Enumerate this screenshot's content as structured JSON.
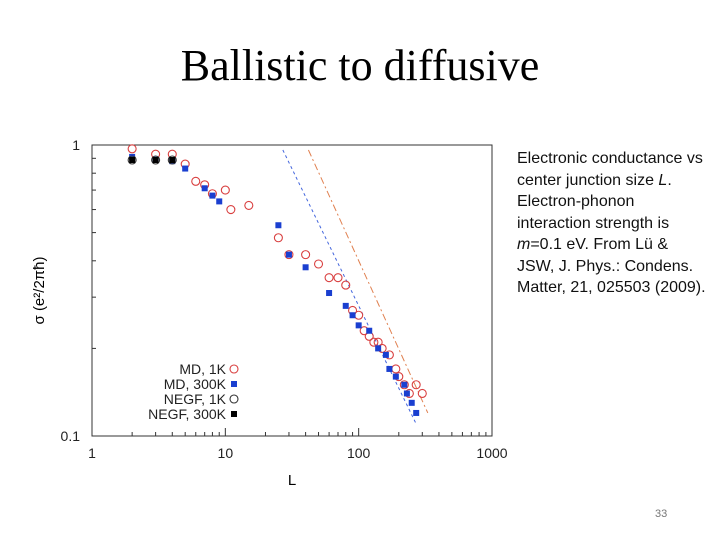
{
  "slide": {
    "title": "Ballistic to diffusive",
    "caption": {
      "part1": "Electronic conductance vs center junction size ",
      "var_L": "L",
      "part2": ". Electron-phonon interaction strength is ",
      "var_m": "m",
      "part3": "=0.1 eV. From Lü & JSW, J. Phys.: Condens. Matter, 21, 025503 (2009)."
    },
    "page_number": "33"
  },
  "chart_data": {
    "type": "scatter",
    "x_scale": "log",
    "y_scale": "log",
    "xlim": [
      1,
      1000
    ],
    "ylim": [
      0.1,
      1
    ],
    "xlabel": "L",
    "ylabel": "σ (e²/2πħ)",
    "x_ticks": [
      "1",
      "10",
      "100",
      "1000"
    ],
    "y_ticks": [
      "1",
      "0.1"
    ],
    "series": [
      {
        "name": "MD, 1K",
        "marker": "open-circle",
        "color": "#d94040",
        "points": [
          [
            2,
            0.97
          ],
          [
            3,
            0.93
          ],
          [
            4,
            0.93
          ],
          [
            5,
            0.86
          ],
          [
            6,
            0.75
          ],
          [
            7,
            0.73
          ],
          [
            8,
            0.68
          ],
          [
            10,
            0.7
          ],
          [
            11,
            0.6
          ],
          [
            15,
            0.62
          ],
          [
            25,
            0.48
          ],
          [
            30,
            0.42
          ],
          [
            40,
            0.42
          ],
          [
            50,
            0.39
          ],
          [
            60,
            0.35
          ],
          [
            70,
            0.35
          ],
          [
            80,
            0.33
          ],
          [
            90,
            0.27
          ],
          [
            100,
            0.26
          ],
          [
            110,
            0.23
          ],
          [
            120,
            0.22
          ],
          [
            130,
            0.21
          ],
          [
            140,
            0.21
          ],
          [
            150,
            0.2
          ],
          [
            170,
            0.19
          ],
          [
            190,
            0.17
          ],
          [
            200,
            0.16
          ],
          [
            220,
            0.15
          ],
          [
            240,
            0.14
          ],
          [
            270,
            0.15
          ],
          [
            300,
            0.14
          ]
        ]
      },
      {
        "name": "MD, 300K",
        "marker": "filled-square",
        "color": "#1a3fd0",
        "points": [
          [
            2,
            0.91
          ],
          [
            3,
            0.89
          ],
          [
            4,
            0.88
          ],
          [
            5,
            0.83
          ],
          [
            7,
            0.71
          ],
          [
            8,
            0.67
          ],
          [
            9,
            0.64
          ],
          [
            25,
            0.53
          ],
          [
            30,
            0.42
          ],
          [
            40,
            0.38
          ],
          [
            60,
            0.31
          ],
          [
            80,
            0.28
          ],
          [
            90,
            0.26
          ],
          [
            100,
            0.24
          ],
          [
            120,
            0.23
          ],
          [
            140,
            0.2
          ],
          [
            160,
            0.19
          ],
          [
            170,
            0.17
          ],
          [
            190,
            0.16
          ],
          [
            220,
            0.15
          ],
          [
            230,
            0.14
          ],
          [
            250,
            0.13
          ],
          [
            270,
            0.12
          ]
        ]
      },
      {
        "name": "NEGF, 1K",
        "marker": "open-circle",
        "color": "#333333",
        "points": [
          [
            2,
            1.0
          ],
          [
            3,
            1.0
          ],
          [
            4,
            1.0
          ]
        ]
      },
      {
        "name": "NEGF, 300K",
        "marker": "filled-square",
        "color": "#000000",
        "points": [
          [
            2,
            1.0
          ],
          [
            3,
            1.0
          ],
          [
            4,
            1.0
          ]
        ]
      }
    ],
    "fit_lines": [
      {
        "name": "NEGF 300K fit",
        "style": "dashed",
        "color": "#4466dd",
        "points": [
          [
            27,
            1.0
          ],
          [
            270,
            0.11
          ]
        ]
      },
      {
        "name": "MD 1K fit",
        "style": "dash-dot",
        "color": "#e08050",
        "points": [
          [
            42,
            1.0
          ],
          [
            330,
            0.12
          ]
        ]
      }
    ]
  }
}
